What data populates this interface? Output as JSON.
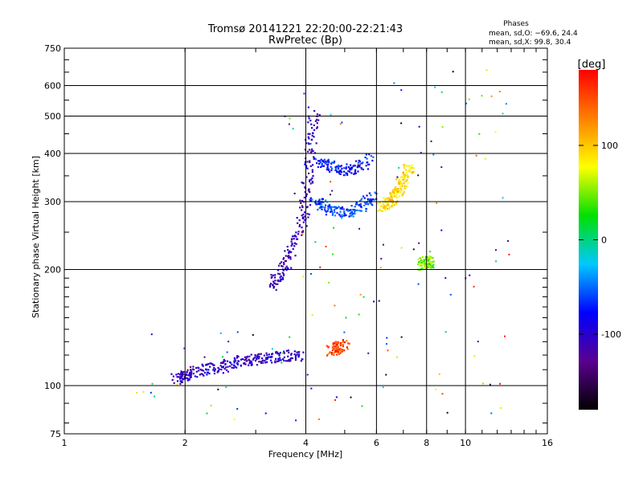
{
  "chart_data": {
    "type": "scatter",
    "title": "Tromsø 20141221 22:20:00-22:21:43",
    "subtitle": "RwPretec (Bp)",
    "xlabel": "Frequency [MHz]",
    "ylabel": "Stationary phase Virtual Height [km]",
    "x_scale": "log",
    "y_scale": "log",
    "xlim": [
      1,
      16
    ],
    "ylim": [
      75,
      750
    ],
    "x_ticks": [
      1,
      2,
      4,
      6,
      8,
      10,
      16
    ],
    "y_ticks": [
      75,
      100,
      200,
      300,
      400,
      500,
      600,
      750
    ],
    "grid": true,
    "phases_box": {
      "title": "Phases",
      "line_o": "mean, sd,O: −69.6, 24.4",
      "line_x": "mean, sd,X:  99.8, 30.4"
    },
    "colorbar": {
      "label": "[deg]",
      "min": -180,
      "max": 180,
      "ticks": [
        100,
        0,
        -100
      ],
      "colors": [
        "#000000",
        "#5a0090",
        "#0000ff",
        "#00c8ff",
        "#00e000",
        "#ffff00",
        "#ff8000",
        "#ff0000"
      ]
    },
    "series": [
      {
        "kind": "E-layer trace",
        "x": [
          1.9,
          2.0,
          2.2,
          2.5,
          2.8,
          3.1,
          3.5,
          3.9
        ],
        "y": [
          104,
          106,
          110,
          112,
          116,
          117,
          119,
          120
        ],
        "phase": -105
      },
      {
        "kind": "F-layer rise",
        "x": [
          3.3,
          3.5,
          3.8,
          4.0,
          4.1,
          4.2
        ],
        "y": [
          180,
          200,
          240,
          300,
          400,
          520
        ],
        "phase": -110
      },
      {
        "kind": "O-mode main",
        "x": [
          4.2,
          4.5,
          5.0,
          5.5,
          5.9
        ],
        "y": [
          300,
          290,
          280,
          290,
          310
        ],
        "phase": -60
      },
      {
        "kind": "O-mode upper",
        "x": [
          4.3,
          4.7,
          5.2,
          5.8
        ],
        "y": [
          380,
          370,
          360,
          390
        ],
        "phase": -75
      },
      {
        "kind": "X-mode",
        "x": [
          6.2,
          6.5,
          6.8,
          7.0,
          7.3
        ],
        "y": [
          290,
          300,
          320,
          345,
          370
        ],
        "phase": 95
      },
      {
        "kind": "X-mode cusp",
        "x": [
          4.6,
          4.8,
          5.0
        ],
        "y": [
          122,
          126,
          128
        ],
        "phase": 150
      },
      {
        "kind": "sporadic",
        "x": [
          7.8,
          8.0,
          8.2
        ],
        "y": [
          205,
          210,
          208
        ],
        "phase": 50
      }
    ]
  }
}
